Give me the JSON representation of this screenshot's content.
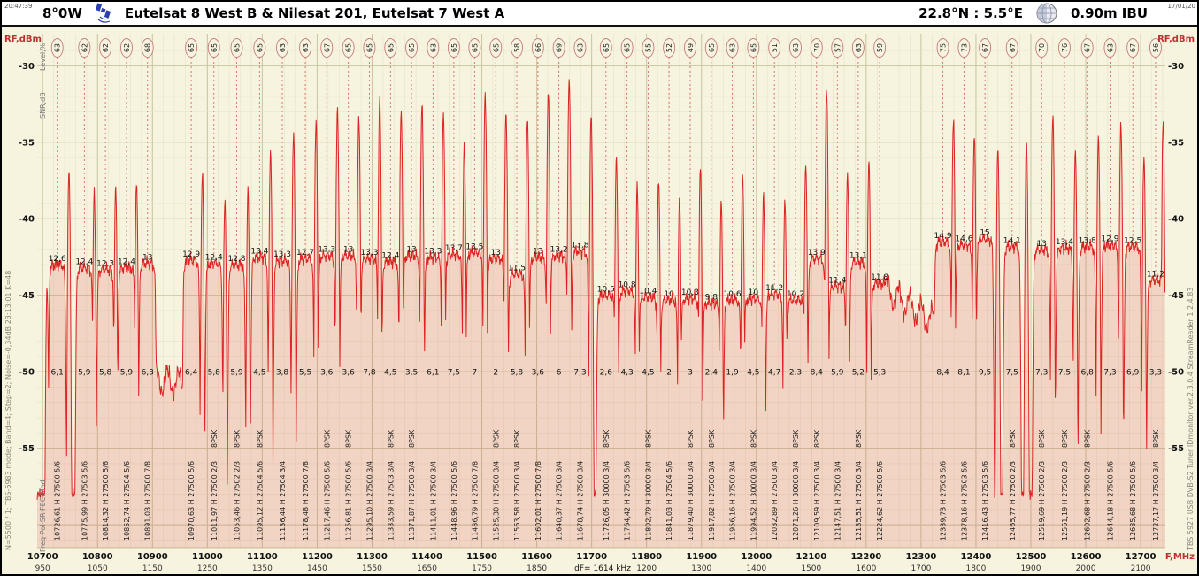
{
  "header": {
    "time": "20:47:39",
    "date": "17/01/20",
    "position": "8°0W",
    "title": "Eutelsat 8 West B & Nilesat 201, Eutelsat 7 West A",
    "coords": "22.8°N : 5.5°E",
    "dish": "0.90m IBU"
  },
  "side_notes": {
    "left_outer": "N=5500 / 1;  TBS-6983 mode;  Band=4;  Step=2;  Noise=-0,34dB      23:13:01    K=48",
    "right_outer": "TBS 5927 USB DVB-S2 Tuner    IDmonitor    ver.2.3.0.4    StreamReader 1.2.4.83",
    "freq_legend": "Freq  Pol  SR  FEC  Mod",
    "snr_legend": "SNR,dB",
    "level_legend": "Level,%"
  },
  "colors": {
    "bg": "#f6f3df",
    "titlebar_bg": "#ffffff",
    "grid_minor": "#e7e3c9",
    "grid_major": "#c9c49f",
    "trace": "#dd2222",
    "fill": "rgba(221,60,60,0.17)",
    "marker": "#d96a6a",
    "badge": "#c87a7a",
    "accent": "#c03030",
    "text": "#111111",
    "muted": "#8a8878",
    "icon_blue": "#2b3fae"
  },
  "chart_data": {
    "type": "area",
    "title": "Satellite RF spectrum 10700-12750 MHz, horizontal polarization",
    "ylabel_left": "RF,dBm",
    "ylabel_right": "RF,dBm",
    "xlabel": "F,MHz",
    "xlim": [
      10690,
      12745
    ],
    "ylim": [
      -61.5,
      -27.9
    ],
    "y_ticks": [
      -30,
      -35,
      -40,
      -45,
      -50,
      -55
    ],
    "x_ticks": [
      {
        "mhz": 10700,
        "if": "950"
      },
      {
        "mhz": 10800,
        "if": "1050"
      },
      {
        "mhz": 10900,
        "if": "1150"
      },
      {
        "mhz": 11000,
        "if": "1250"
      },
      {
        "mhz": 11100,
        "if": "1350"
      },
      {
        "mhz": 11200,
        "if": "1450"
      },
      {
        "mhz": 11300,
        "if": "1550"
      },
      {
        "mhz": 11400,
        "if": "1650"
      },
      {
        "mhz": 11500,
        "if": "1750"
      },
      {
        "mhz": 11600,
        "if": "1850"
      },
      {
        "mhz": 11700,
        "if": ""
      },
      {
        "mhz": 11800,
        "if": "1200"
      },
      {
        "mhz": 11900,
        "if": "1300"
      },
      {
        "mhz": 12000,
        "if": "1400"
      },
      {
        "mhz": 12100,
        "if": "1500"
      },
      {
        "mhz": 12200,
        "if": "1600"
      },
      {
        "mhz": 12300,
        "if": "1700"
      },
      {
        "mhz": 12400,
        "if": "1800"
      },
      {
        "mhz": 12500,
        "if": "1900"
      },
      {
        "mhz": 12600,
        "if": "2000"
      },
      {
        "mhz": 12700,
        "if": "2100"
      }
    ],
    "df_label": "dF= 1614 kHz",
    "grid": true,
    "noise_floor_dbm": -58,
    "gaps": [
      {
        "from": 10902,
        "to": 10966,
        "start": -50.5,
        "end": -50.8
      },
      {
        "from": 12234,
        "to": 12336,
        "start": -44.6,
        "end": -47.0
      }
    ],
    "transponders": [
      {
        "f": 10726.61,
        "pol": "H",
        "sr": "27500",
        "fec": "5/6",
        "mod": "",
        "snr": "12,6",
        "margin": "6,1",
        "level": "63",
        "peak": -43.0
      },
      {
        "f": 10775.99,
        "pol": "H",
        "sr": "27503",
        "fec": "5/6",
        "mod": "",
        "snr": "12,4",
        "margin": "5,9",
        "level": "62",
        "peak": -43.2
      },
      {
        "f": 10814.32,
        "pol": "H",
        "sr": "27500",
        "fec": "5/6",
        "mod": "",
        "snr": "12,3",
        "margin": "5,8",
        "level": "62",
        "peak": -43.3
      },
      {
        "f": 10852.74,
        "pol": "H",
        "sr": "27504",
        "fec": "5/6",
        "mod": "",
        "snr": "12,4",
        "margin": "5,9",
        "level": "62",
        "peak": -43.2
      },
      {
        "f": 10891.03,
        "pol": "H",
        "sr": "27500",
        "fec": "7/8",
        "mod": "",
        "snr": "13",
        "margin": "6,3",
        "level": "68",
        "peak": -42.9
      },
      {
        "f": 10970.63,
        "pol": "H",
        "sr": "27500",
        "fec": "5/6",
        "mod": "",
        "snr": "12,9",
        "margin": "6,4",
        "level": "65",
        "peak": -42.7
      },
      {
        "f": 11011.97,
        "pol": "H",
        "sr": "27500",
        "fec": "2/3",
        "mod": "8PSK",
        "snr": "12,4",
        "margin": "5,8",
        "level": "65",
        "peak": -42.9
      },
      {
        "f": 11053.46,
        "pol": "H",
        "sr": "27502",
        "fec": "2/3",
        "mod": "8PSK",
        "snr": "12,8",
        "margin": "5,9",
        "level": "65",
        "peak": -43.0
      },
      {
        "f": 11095.12,
        "pol": "H",
        "sr": "27504",
        "fec": "5/6",
        "mod": "8PSK",
        "snr": "13,4",
        "margin": "4,5",
        "level": "65",
        "peak": -42.5
      },
      {
        "f": 11136.44,
        "pol": "H",
        "sr": "27504",
        "fec": "3/4",
        "mod": "",
        "snr": "13,3",
        "margin": "3,8",
        "level": "63",
        "peak": -42.7
      },
      {
        "f": 11178.48,
        "pol": "H",
        "sr": "27500",
        "fec": "7/8",
        "mod": "",
        "snr": "12,7",
        "margin": "5,5",
        "level": "63",
        "peak": -42.6
      },
      {
        "f": 11217.46,
        "pol": "H",
        "sr": "27500",
        "fec": "5/6",
        "mod": "8PSK",
        "snr": "13,3",
        "margin": "3,6",
        "level": "67",
        "peak": -42.4
      },
      {
        "f": 11256.81,
        "pol": "H",
        "sr": "27500",
        "fec": "5/6",
        "mod": "8PSK",
        "snr": "13",
        "margin": "3,6",
        "level": "65",
        "peak": -42.4
      },
      {
        "f": 11295.1,
        "pol": "H",
        "sr": "27500",
        "fec": "3/4",
        "mod": "",
        "snr": "13,3",
        "margin": "7,8",
        "level": "65",
        "peak": -42.6
      },
      {
        "f": 11333.59,
        "pol": "H",
        "sr": "27503",
        "fec": "3/4",
        "mod": "8PSK",
        "snr": "12,4",
        "margin": "4,5",
        "level": "65",
        "peak": -42.8
      },
      {
        "f": 11371.87,
        "pol": "H",
        "sr": "27500",
        "fec": "3/4",
        "mod": "8PSK",
        "snr": "13",
        "margin": "3,5",
        "level": "65",
        "peak": -42.4
      },
      {
        "f": 11411.01,
        "pol": "H",
        "sr": "27500",
        "fec": "3/4",
        "mod": "",
        "snr": "13,3",
        "margin": "6,1",
        "level": "63",
        "peak": -42.5
      },
      {
        "f": 11448.96,
        "pol": "H",
        "sr": "27500",
        "fec": "5/6",
        "mod": "",
        "snr": "13,7",
        "margin": "7,5",
        "level": "65",
        "peak": -42.3
      },
      {
        "f": 11486.79,
        "pol": "H",
        "sr": "27500",
        "fec": "7/8",
        "mod": "",
        "snr": "13,5",
        "margin": "7",
        "level": "65",
        "peak": -42.2
      },
      {
        "f": 11525.3,
        "pol": "H",
        "sr": "27500",
        "fec": "3/4",
        "mod": "8PSK",
        "snr": "13",
        "margin": "2",
        "level": "65",
        "peak": -42.6
      },
      {
        "f": 11563.58,
        "pol": "H",
        "sr": "27500",
        "fec": "3/4",
        "mod": "8PSK",
        "snr": "11,5",
        "margin": "5,8",
        "level": "58",
        "peak": -43.6
      },
      {
        "f": 11602.01,
        "pol": "H",
        "sr": "27500",
        "fec": "7/8",
        "mod": "",
        "snr": "13",
        "margin": "3,6",
        "level": "66",
        "peak": -42.5
      },
      {
        "f": 11640.37,
        "pol": "H",
        "sr": "27500",
        "fec": "3/4",
        "mod": "",
        "snr": "13,2",
        "margin": "6",
        "level": "69",
        "peak": -42.4
      },
      {
        "f": 11678.74,
        "pol": "H",
        "sr": "27500",
        "fec": "3/4",
        "mod": "",
        "snr": "13,8",
        "margin": "7,3",
        "level": "63",
        "peak": -42.1
      },
      {
        "f": 11726.05,
        "pol": "H",
        "sr": "30000",
        "fec": "3/4",
        "mod": "8PSK",
        "snr": "10,5",
        "margin": "2,6",
        "level": "65",
        "peak": -45.0
      },
      {
        "f": 11764.42,
        "pol": "H",
        "sr": "27503",
        "fec": "5/6",
        "mod": "",
        "snr": "10,8",
        "margin": "4,3",
        "level": "65",
        "peak": -44.7
      },
      {
        "f": 11802.79,
        "pol": "H",
        "sr": "30000",
        "fec": "3/4",
        "mod": "8PSK",
        "snr": "10,4",
        "margin": "4,5",
        "level": "55",
        "peak": -45.1
      },
      {
        "f": 11841.03,
        "pol": "H",
        "sr": "27504",
        "fec": "5/6",
        "mod": "",
        "snr": "10",
        "margin": "2",
        "level": "52",
        "peak": -45.3
      },
      {
        "f": 11879.4,
        "pol": "H",
        "sr": "30000",
        "fec": "3/4",
        "mod": "8PSK",
        "snr": "10,3",
        "margin": "3",
        "level": "49",
        "peak": -45.2
      },
      {
        "f": 11917.82,
        "pol": "H",
        "sr": "27500",
        "fec": "3/4",
        "mod": "8PSK",
        "snr": "9,8",
        "margin": "2,4",
        "level": "65",
        "peak": -45.5
      },
      {
        "f": 11956.16,
        "pol": "H",
        "sr": "27500",
        "fec": "3/4",
        "mod": "",
        "snr": "10,6",
        "margin": "1,9",
        "level": "63",
        "peak": -45.3
      },
      {
        "f": 11994.52,
        "pol": "H",
        "sr": "30000",
        "fec": "3/4",
        "mod": "8PSK",
        "snr": "10",
        "margin": "4,5",
        "level": "65",
        "peak": -45.2
      },
      {
        "f": 12032.89,
        "pol": "H",
        "sr": "27500",
        "fec": "3/4",
        "mod": "",
        "snr": "11,2",
        "margin": "4,7",
        "level": "51",
        "peak": -44.9
      },
      {
        "f": 12071.26,
        "pol": "H",
        "sr": "30000",
        "fec": "3/4",
        "mod": "8PSK",
        "snr": "10,2",
        "margin": "2,3",
        "level": "63",
        "peak": -45.3
      },
      {
        "f": 12109.59,
        "pol": "H",
        "sr": "27500",
        "fec": "3/4",
        "mod": "8PSK",
        "snr": "13,9",
        "margin": "8,4",
        "level": "70",
        "peak": -42.6
      },
      {
        "f": 12147.51,
        "pol": "H",
        "sr": "27500",
        "fec": "3/4",
        "mod": "",
        "snr": "11,4",
        "margin": "5,9",
        "level": "57",
        "peak": -44.4
      },
      {
        "f": 12185.51,
        "pol": "H",
        "sr": "27500",
        "fec": "3/4",
        "mod": "8PSK",
        "snr": "13,1",
        "margin": "5,2",
        "level": "63",
        "peak": -42.8
      },
      {
        "f": 12224.62,
        "pol": "H",
        "sr": "27500",
        "fec": "5/6",
        "mod": "",
        "snr": "11,8",
        "margin": "5,3",
        "level": "59",
        "peak": -44.2
      },
      {
        "f": 12339.73,
        "pol": "H",
        "sr": "27503",
        "fec": "5/6",
        "mod": "",
        "snr": "14,9",
        "margin": "8,4",
        "level": "75",
        "peak": -41.5
      },
      {
        "f": 12378.16,
        "pol": "H",
        "sr": "27503",
        "fec": "5/6",
        "mod": "",
        "snr": "14,6",
        "margin": "8,1",
        "level": "73",
        "peak": -41.7
      },
      {
        "f": 12416.43,
        "pol": "H",
        "sr": "27503",
        "fec": "5/6",
        "mod": "",
        "snr": "15",
        "margin": "9,5",
        "level": "67",
        "peak": -41.3
      },
      {
        "f": 12465.77,
        "pol": "H",
        "sr": "27500",
        "fec": "2/3",
        "mod": "8PSK",
        "snr": "14,1",
        "margin": "7,5",
        "level": "67",
        "peak": -41.8
      },
      {
        "f": 12519.69,
        "pol": "H",
        "sr": "27500",
        "fec": "2/3",
        "mod": "8PSK",
        "snr": "13",
        "margin": "7,3",
        "level": "70",
        "peak": -42.0
      },
      {
        "f": 12561.19,
        "pol": "H",
        "sr": "27500",
        "fec": "2/3",
        "mod": "8PSK",
        "snr": "13,4",
        "margin": "7,5",
        "level": "76",
        "peak": -41.9
      },
      {
        "f": 12602.68,
        "pol": "H",
        "sr": "27500",
        "fec": "2/3",
        "mod": "8PSK",
        "snr": "13,8",
        "margin": "6,8",
        "level": "67",
        "peak": -41.8
      },
      {
        "f": 12644.18,
        "pol": "H",
        "sr": "27500",
        "fec": "5/6",
        "mod": "",
        "snr": "12,9",
        "margin": "7,3",
        "level": "63",
        "peak": -41.7
      },
      {
        "f": 12685.68,
        "pol": "H",
        "sr": "27500",
        "fec": "5/6",
        "mod": "",
        "snr": "12,5",
        "margin": "6,9",
        "level": "67",
        "peak": -41.8
      },
      {
        "f": 12727.17,
        "pol": "H",
        "sr": "27500",
        "fec": "3/4",
        "mod": "8PSK",
        "snr": "11,2",
        "margin": "3,3",
        "level": "56",
        "peak": -44.0
      }
    ],
    "vpol_peaks": [
      {
        "f": 10708,
        "peak": -44.5
      },
      {
        "f": 10748,
        "peak": -36.8
      },
      {
        "f": 10794,
        "peak": -38.2
      },
      {
        "f": 10833,
        "peak": -37.8
      },
      {
        "f": 10871,
        "peak": -37.6
      },
      {
        "f": 10991,
        "peak": -37.0
      },
      {
        "f": 11032,
        "peak": -38.8
      },
      {
        "f": 11074,
        "peak": -38.0
      },
      {
        "f": 11115,
        "peak": -35.6
      },
      {
        "f": 11157,
        "peak": -34.4
      },
      {
        "f": 11198,
        "peak": -33.6
      },
      {
        "f": 11237,
        "peak": -32.9
      },
      {
        "f": 11276,
        "peak": -33.4
      },
      {
        "f": 11314,
        "peak": -32.1
      },
      {
        "f": 11353,
        "peak": -33.0
      },
      {
        "f": 11391,
        "peak": -32.5
      },
      {
        "f": 11430,
        "peak": -33.1
      },
      {
        "f": 11468,
        "peak": -35.0
      },
      {
        "f": 11506,
        "peak": -31.9
      },
      {
        "f": 11544,
        "peak": -33.1
      },
      {
        "f": 11583,
        "peak": -33.4
      },
      {
        "f": 11621,
        "peak": -31.6
      },
      {
        "f": 11659,
        "peak": -30.9
      },
      {
        "f": 11699,
        "peak": -33.2
      },
      {
        "f": 11745,
        "peak": -36.0
      },
      {
        "f": 11783,
        "peak": -37.8
      },
      {
        "f": 11822,
        "peak": -37.4
      },
      {
        "f": 11860,
        "peak": -38.5
      },
      {
        "f": 11898,
        "peak": -36.6
      },
      {
        "f": 11936,
        "peak": -38.8
      },
      {
        "f": 11975,
        "peak": -37.1
      },
      {
        "f": 12013,
        "peak": -38.4
      },
      {
        "f": 12052,
        "peak": -38.7
      },
      {
        "f": 12090,
        "peak": -36.4
      },
      {
        "f": 12128,
        "peak": -31.5
      },
      {
        "f": 12166,
        "peak": -37.0
      },
      {
        "f": 12205,
        "peak": -36.2
      },
      {
        "f": 12359,
        "peak": -33.5
      },
      {
        "f": 12397,
        "peak": -34.5
      },
      {
        "f": 12440,
        "peak": -35.4
      },
      {
        "f": 12492,
        "peak": -34.9
      },
      {
        "f": 12540,
        "peak": -33.2
      },
      {
        "f": 12581,
        "peak": -35.5
      },
      {
        "f": 12623,
        "peak": -34.6
      },
      {
        "f": 12664,
        "peak": -33.8
      },
      {
        "f": 12706,
        "peak": -35.9
      },
      {
        "f": 12741,
        "peak": -33.6
      }
    ]
  }
}
